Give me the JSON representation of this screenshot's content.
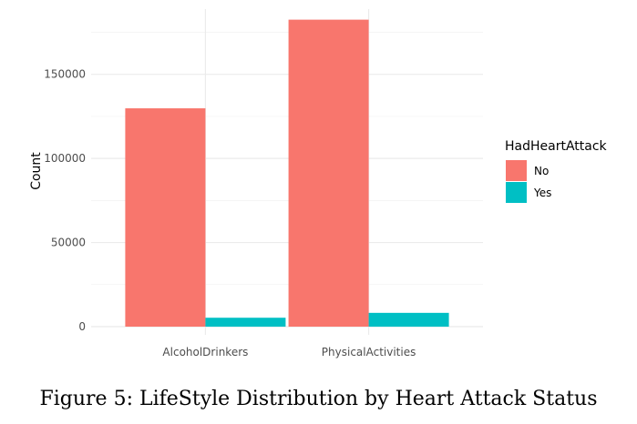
{
  "caption": "Figure 5: LifeStyle Distribution by Heart Attack Status",
  "chart_data": {
    "type": "bar",
    "categories": [
      "AlcoholDrinkers",
      "PhysicalActivities"
    ],
    "series": [
      {
        "name": "No",
        "values": [
          129800,
          182500
        ],
        "color": "#F8766D"
      },
      {
        "name": "Yes",
        "values": [
          5300,
          8200
        ],
        "color": "#00BFC4"
      }
    ],
    "title": "",
    "xlabel": "",
    "ylabel": "Count",
    "ylim": [
      0,
      185000
    ],
    "yticks": [
      0,
      50000,
      100000,
      150000
    ],
    "ytick_labels": [
      "0",
      "50000",
      "100000",
      "150000"
    ],
    "legend_title": "HadHeartAttack",
    "legend_position": "right",
    "grid": true
  }
}
